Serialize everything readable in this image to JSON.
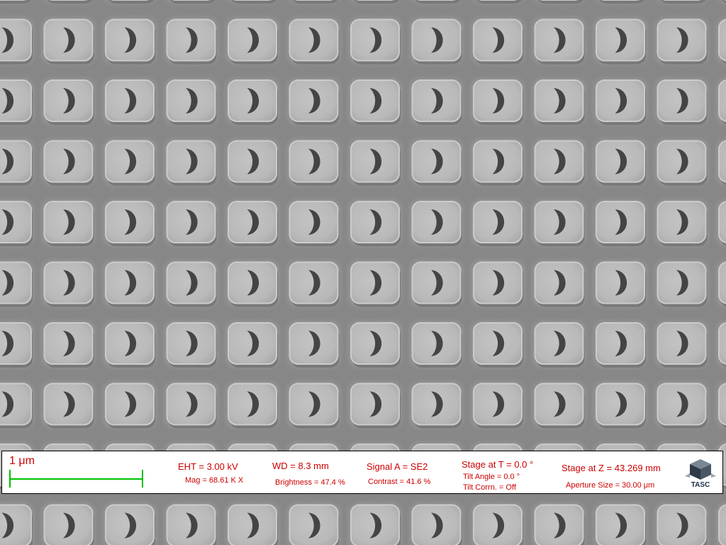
{
  "image": {
    "subject": "scanning electron micrograph of periodic square pillars with crescent-shaped holes",
    "rows_visible": 9,
    "columns_visible": 12
  },
  "info_bar": {
    "scale_label": "1 μm",
    "eht": "EHT =  3.00 kV",
    "mag": "Mag =  68.61 K X",
    "wd": "WD =  8.3 mm",
    "brightness": "Brightness =  47.4 %",
    "signal": "Signal A = SE2",
    "contrast": "Contrast =  41.6 %",
    "stage_t": "Stage at T =    0.0 °",
    "tilt_angle": "Tilt Angle =    0.0 °",
    "tilt_corrn": "Tilt Corrn. = Off",
    "stage_z": "Stage at Z = 43.269 mm",
    "aperture": "Aperture Size = 30.00 μm",
    "logo_text": "TASC"
  },
  "colors": {
    "label_red": "#cc0000",
    "scale_bar_green": "#00c000",
    "background_gray": "#858585",
    "pillar_light": "#d8d8d8"
  }
}
